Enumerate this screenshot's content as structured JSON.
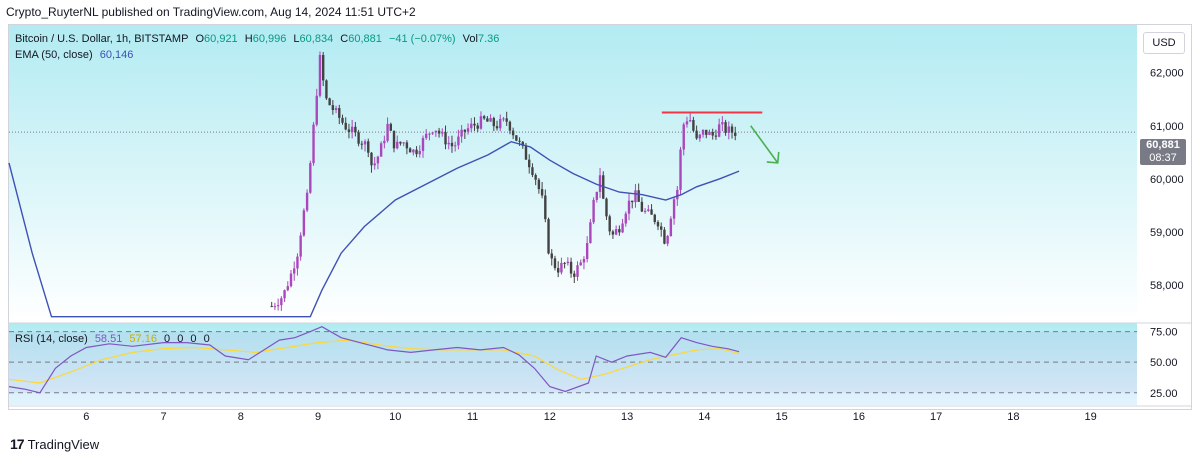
{
  "header": {
    "publisher": "Crypto_RuyterNL published on TradingView.com, Aug 14, 2024 11:51 UTC+2"
  },
  "legend": {
    "symbol": "Bitcoin / U.S. Dollar, 1h, BITSTAMP",
    "o_label": "O",
    "o": "60,921",
    "h_label": "H",
    "h": "60,996",
    "l_label": "L",
    "l": "60,834",
    "c_label": "C",
    "c": "60,881",
    "change": "−41 (−0.07%)",
    "vol_label": "Vol",
    "vol": "7.36",
    "ema_label": "EMA (50, close)",
    "ema_value": "60,146"
  },
  "rsi_legend": {
    "label": "RSI (14, close)",
    "value": "58.51",
    "value2": "57.16",
    "zeros": [
      "0",
      "0",
      "0",
      "0"
    ]
  },
  "currency_button": "USD",
  "last_price": {
    "value": "60,881",
    "countdown": "08:37"
  },
  "brand": "TradingView",
  "colors": {
    "up": "#ab47bc",
    "down": "#424242",
    "ema": "#3f51b5",
    "rsi": "#7e57c2",
    "rsi_ma": "#fdd835",
    "resistance": "#f23645",
    "arrow": "#4caf50",
    "bg_top": "#b2ebf2",
    "bg_bottom": "#ffffff"
  },
  "chart_data": {
    "type": "candlestick",
    "price_axis": {
      "ticks": [
        62000,
        61000,
        60000,
        59000,
        58000
      ],
      "tick_labels": [
        "62,000",
        "61,000",
        "60,000",
        "59,000",
        "58,000"
      ],
      "range": [
        57300,
        62900
      ]
    },
    "time_axis": {
      "days": [
        6,
        7,
        8,
        9,
        10,
        11,
        12,
        13,
        14,
        15,
        16,
        17,
        18,
        19
      ],
      "day_labels": [
        "6",
        "7",
        "8",
        "9",
        "10",
        "11",
        "12",
        "13",
        "14",
        "15",
        "16",
        "17",
        "18",
        "19"
      ],
      "range_days": [
        5.0,
        19.6
      ]
    },
    "price_path": [
      [
        8.4,
        57600
      ],
      [
        8.55,
        57800
      ],
      [
        8.65,
        58200
      ],
      [
        8.75,
        58700
      ],
      [
        8.8,
        59300
      ],
      [
        8.85,
        59500
      ],
      [
        8.92,
        60600
      ],
      [
        8.98,
        61600
      ],
      [
        9.02,
        62300
      ],
      [
        9.1,
        61500
      ],
      [
        9.2,
        61300
      ],
      [
        9.35,
        61000
      ],
      [
        9.5,
        60800
      ],
      [
        9.65,
        60600
      ],
      [
        9.7,
        60200
      ],
      [
        9.8,
        60500
      ],
      [
        9.9,
        61000
      ],
      [
        10.0,
        60600
      ],
      [
        10.1,
        60700
      ],
      [
        10.25,
        60500
      ],
      [
        10.4,
        60800
      ],
      [
        10.5,
        61000
      ],
      [
        10.6,
        60800
      ],
      [
        10.75,
        60600
      ],
      [
        10.9,
        60900
      ],
      [
        11.0,
        61000
      ],
      [
        11.15,
        61100
      ],
      [
        11.3,
        61000
      ],
      [
        11.45,
        61100
      ],
      [
        11.55,
        60800
      ],
      [
        11.7,
        60400
      ],
      [
        11.8,
        60100
      ],
      [
        11.9,
        59600
      ],
      [
        12.0,
        58500
      ],
      [
        12.1,
        58300
      ],
      [
        12.2,
        58400
      ],
      [
        12.3,
        58200
      ],
      [
        12.4,
        58400
      ],
      [
        12.5,
        58800
      ],
      [
        12.55,
        59400
      ],
      [
        12.65,
        60100
      ],
      [
        12.7,
        59500
      ],
      [
        12.8,
        58900
      ],
      [
        12.9,
        59100
      ],
      [
        13.0,
        59500
      ],
      [
        13.1,
        59700
      ],
      [
        13.2,
        59400
      ],
      [
        13.3,
        59300
      ],
      [
        13.4,
        59200
      ],
      [
        13.5,
        58800
      ],
      [
        13.6,
        59600
      ],
      [
        13.65,
        59800
      ],
      [
        13.72,
        61000
      ],
      [
        13.8,
        61200
      ],
      [
        13.9,
        60700
      ],
      [
        14.0,
        60900
      ],
      [
        14.1,
        60800
      ],
      [
        14.2,
        61000
      ],
      [
        14.3,
        60900
      ],
      [
        14.4,
        60881
      ]
    ],
    "ema_path": [
      [
        5.0,
        60300
      ],
      [
        5.3,
        58600
      ],
      [
        5.55,
        57400
      ],
      [
        8.9,
        57400
      ],
      [
        9.05,
        57900
      ],
      [
        9.3,
        58600
      ],
      [
        9.6,
        59100
      ],
      [
        10.0,
        59600
      ],
      [
        10.4,
        59900
      ],
      [
        10.8,
        60200
      ],
      [
        11.2,
        60450
      ],
      [
        11.5,
        60700
      ],
      [
        11.75,
        60600
      ],
      [
        12.0,
        60350
      ],
      [
        12.3,
        60100
      ],
      [
        12.6,
        59900
      ],
      [
        12.9,
        59750
      ],
      [
        13.2,
        59700
      ],
      [
        13.5,
        59600
      ],
      [
        13.7,
        59700
      ],
      [
        13.9,
        59850
      ],
      [
        14.2,
        60000
      ],
      [
        14.45,
        60146
      ]
    ],
    "resistance_level": {
      "value": 61250,
      "from_day": 13.45,
      "to_day": 14.75
    },
    "rsi": {
      "levels": [
        75,
        50,
        25
      ],
      "level_labels": [
        "75.00",
        "50.00",
        "25.00"
      ],
      "range": [
        15,
        82
      ],
      "path": [
        [
          5.0,
          30
        ],
        [
          5.2,
          28
        ],
        [
          5.4,
          25
        ],
        [
          5.6,
          45
        ],
        [
          5.8,
          55
        ],
        [
          6.0,
          62
        ],
        [
          6.3,
          65
        ],
        [
          6.6,
          63
        ],
        [
          7.0,
          66
        ],
        [
          7.3,
          66
        ],
        [
          7.6,
          64
        ],
        [
          7.8,
          55
        ],
        [
          8.1,
          52
        ],
        [
          8.3,
          60
        ],
        [
          8.5,
          68
        ],
        [
          8.7,
          70
        ],
        [
          8.9,
          75
        ],
        [
          9.05,
          79
        ],
        [
          9.3,
          70
        ],
        [
          9.6,
          65
        ],
        [
          9.9,
          60
        ],
        [
          10.2,
          58
        ],
        [
          10.5,
          60
        ],
        [
          10.8,
          62
        ],
        [
          11.1,
          60
        ],
        [
          11.4,
          62
        ],
        [
          11.6,
          56
        ],
        [
          11.8,
          45
        ],
        [
          12.0,
          30
        ],
        [
          12.2,
          26
        ],
        [
          12.5,
          33
        ],
        [
          12.6,
          55
        ],
        [
          12.8,
          50
        ],
        [
          13.0,
          55
        ],
        [
          13.3,
          58
        ],
        [
          13.5,
          54
        ],
        [
          13.7,
          70
        ],
        [
          13.9,
          66
        ],
        [
          14.1,
          63
        ],
        [
          14.3,
          61
        ],
        [
          14.45,
          58.51
        ]
      ],
      "ma_path": [
        [
          5.0,
          36
        ],
        [
          5.4,
          33
        ],
        [
          5.8,
          42
        ],
        [
          6.2,
          52
        ],
        [
          6.6,
          58
        ],
        [
          7.0,
          61
        ],
        [
          7.4,
          62
        ],
        [
          7.8,
          60
        ],
        [
          8.2,
          58
        ],
        [
          8.6,
          62
        ],
        [
          9.0,
          66
        ],
        [
          9.4,
          68
        ],
        [
          9.8,
          64
        ],
        [
          10.2,
          61
        ],
        [
          10.6,
          60
        ],
        [
          11.0,
          60
        ],
        [
          11.4,
          60
        ],
        [
          11.8,
          55
        ],
        [
          12.1,
          44
        ],
        [
          12.4,
          36
        ],
        [
          12.7,
          40
        ],
        [
          13.0,
          46
        ],
        [
          13.3,
          52
        ],
        [
          13.6,
          56
        ],
        [
          13.9,
          60
        ],
        [
          14.2,
          61
        ],
        [
          14.45,
          57.16
        ]
      ]
    }
  }
}
